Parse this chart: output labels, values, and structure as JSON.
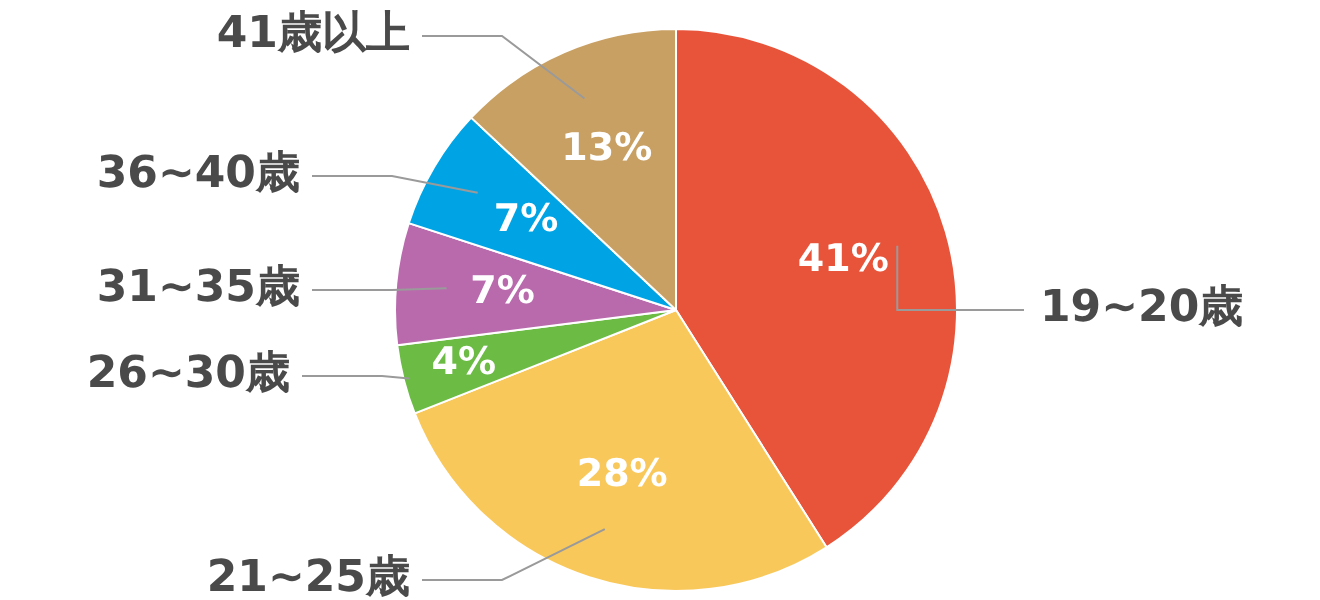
{
  "chart_data": {
    "type": "pie",
    "categories": [
      "19~20歳",
      "21~25歳",
      "26~30歳",
      "31~35歳",
      "36~40歳",
      "41歳以上"
    ],
    "values": [
      41,
      28,
      4,
      7,
      7,
      13
    ],
    "colors": [
      "#e8543a",
      "#f9c85b",
      "#6cbb45",
      "#b96aad",
      "#00a4e4",
      "#c9a063"
    ],
    "value_labels": [
      "41%",
      "28%",
      "4%",
      "7%",
      "7%",
      "13%"
    ],
    "legend": false
  }
}
